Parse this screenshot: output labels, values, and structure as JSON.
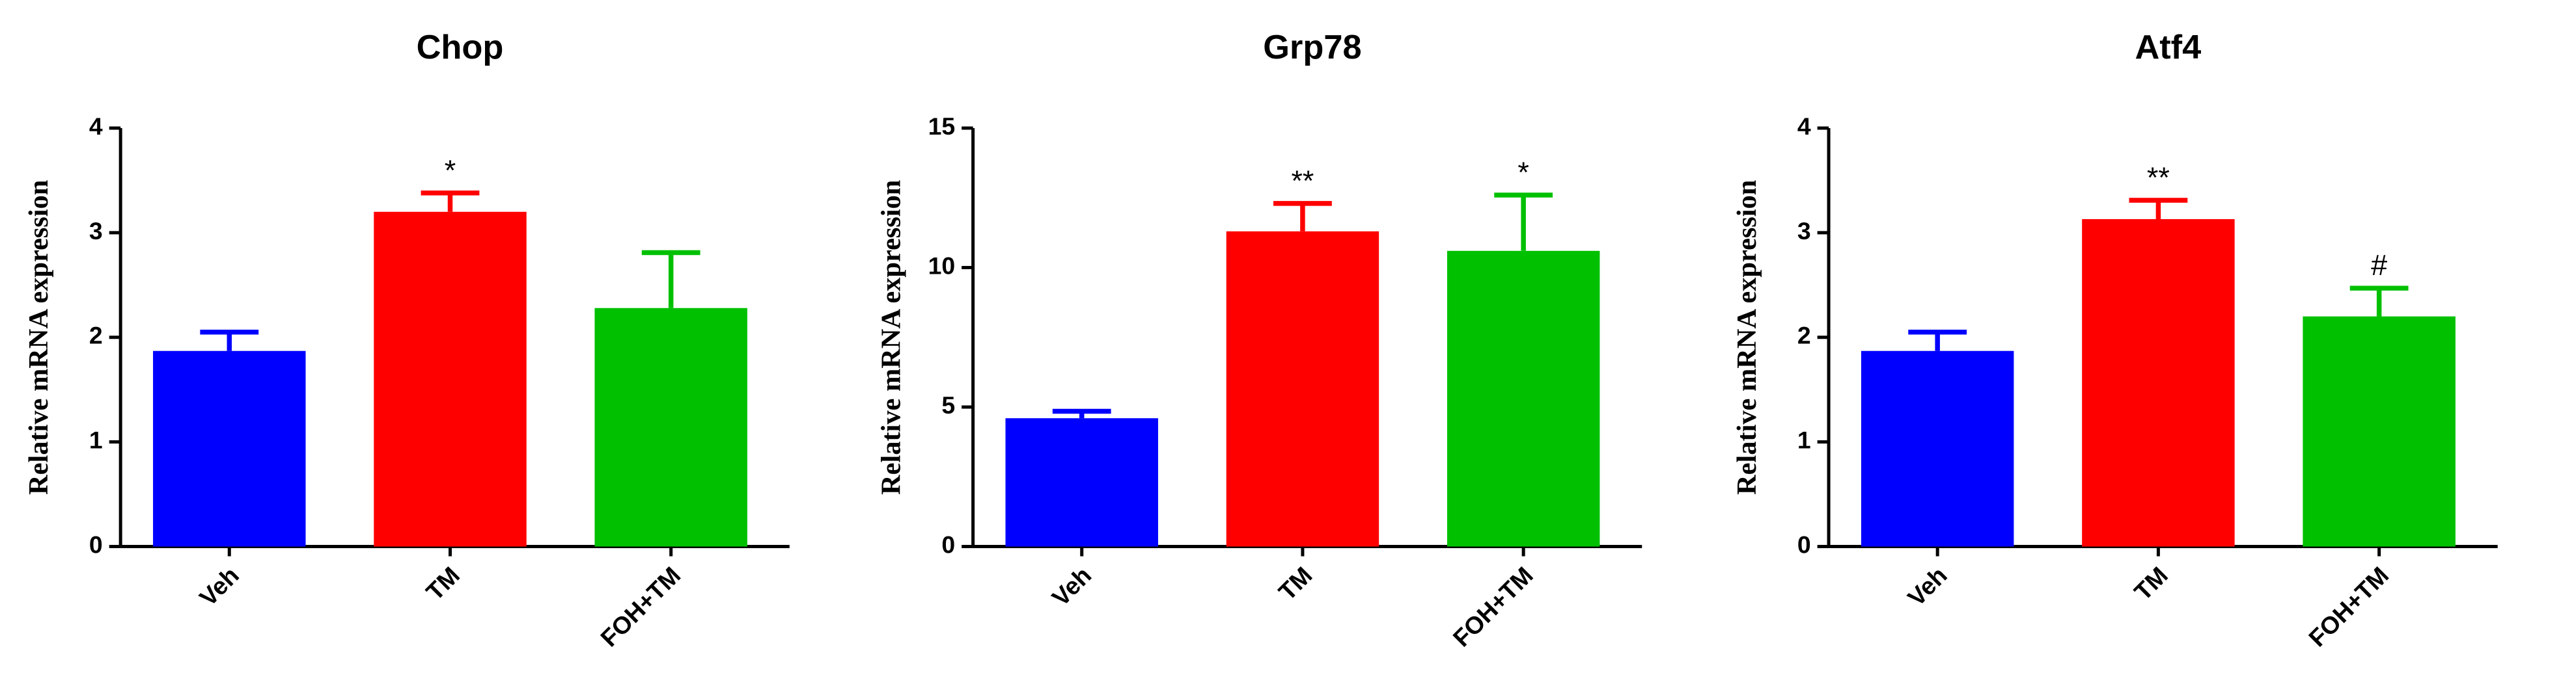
{
  "chart_data": [
    {
      "type": "bar",
      "title": "Chop",
      "y_label": "Relative mRNA expression",
      "categories": [
        "Veh",
        "TM",
        "FOH+TM"
      ],
      "values": [
        1.87,
        3.2,
        2.28
      ],
      "errors": [
        0.18,
        0.18,
        0.53
      ],
      "annotations": [
        null,
        "*",
        null
      ],
      "colors": [
        "#0000ff",
        "#ff0000",
        "#00c000"
      ],
      "ylim": [
        0,
        4
      ],
      "yticks": [
        0,
        1,
        2,
        3,
        4
      ]
    },
    {
      "type": "bar",
      "title": "Grp78",
      "y_label": "Relative mRNA expression",
      "categories": [
        "Veh",
        "TM",
        "FOH+TM"
      ],
      "values": [
        4.6,
        11.3,
        10.6
      ],
      "errors": [
        0.25,
        1.0,
        2.0
      ],
      "annotations": [
        null,
        "**",
        "*"
      ],
      "colors": [
        "#0000ff",
        "#ff0000",
        "#00c000"
      ],
      "ylim": [
        0,
        15
      ],
      "yticks": [
        0,
        5,
        10,
        15
      ]
    },
    {
      "type": "bar",
      "title": "Atf4",
      "y_label": "Relative mRNA expression",
      "categories": [
        "Veh",
        "TM",
        "FOH+TM"
      ],
      "values": [
        1.87,
        3.13,
        2.2
      ],
      "errors": [
        0.18,
        0.18,
        0.27
      ],
      "annotations": [
        null,
        "**",
        "#"
      ],
      "colors": [
        "#0000ff",
        "#ff0000",
        "#00c000"
      ],
      "ylim": [
        0,
        4
      ],
      "yticks": [
        0,
        1,
        2,
        3,
        4
      ]
    }
  ]
}
